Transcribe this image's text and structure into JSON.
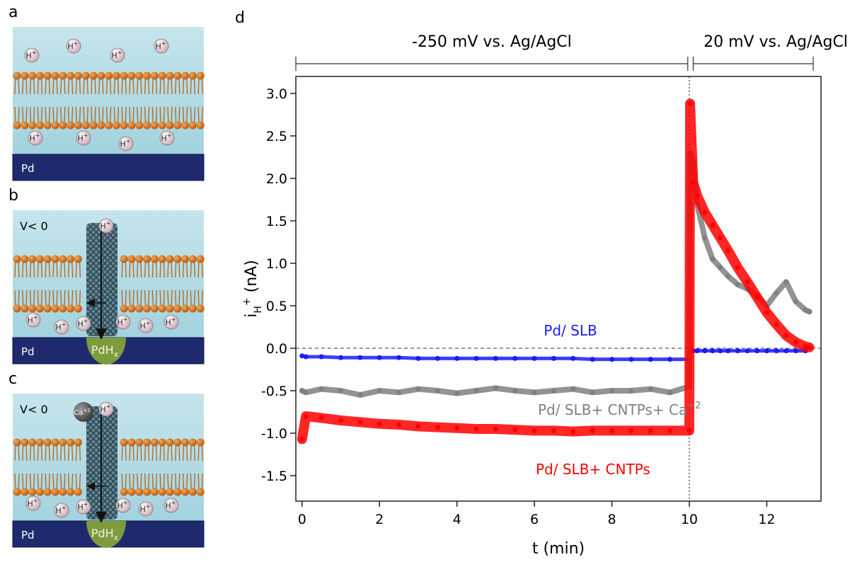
{
  "panels": [
    {
      "label": "a",
      "substrate": "Pd"
    },
    {
      "label": "b",
      "substrate": "Pd",
      "voltage": "V< 0",
      "product": "PdH",
      "product_sub": "x"
    },
    {
      "label": "c",
      "substrate": "Pd",
      "voltage": "V< 0",
      "product": "PdH",
      "product_sub": "x",
      "cation": "Ca",
      "cation_sup": "+2"
    }
  ],
  "ion": {
    "base": "H",
    "sup": "+"
  },
  "chart_data": {
    "type": "line",
    "panel_label": "d",
    "xlabel": "t (min)",
    "ylabel": {
      "main": "i",
      "sub": "H",
      "sup": "+",
      "unit": " (nA)"
    },
    "xlim": [
      -0.16,
      13.4
    ],
    "ylim": [
      -1.8,
      3.2
    ],
    "xticks": [
      0,
      2,
      4,
      6,
      8,
      10,
      12
    ],
    "yticks": [
      -1.5,
      {
        "value": -1.0,
        "label": "-1.0"
      },
      -0.5,
      {
        "value": 0,
        "label": "0.0"
      },
      0.5,
      {
        "value": 1.0,
        "label": "1.0"
      },
      1.5,
      {
        "value": 2.0,
        "label": "2.0"
      },
      2.5,
      {
        "value": 3.0,
        "label": "3.0"
      }
    ],
    "hlines": [
      0
    ],
    "vlines": [
      10
    ],
    "annotations": [
      {
        "text": "-250 mV vs. Ag/AgCl",
        "span": [
          -0.16,
          9.96
        ]
      },
      {
        "text": "20 mV vs. Ag/AgCl",
        "span": [
          10.1,
          13.2
        ]
      }
    ],
    "x": [
      0,
      0.1,
      0.5,
      1,
      1.5,
      2,
      2.5,
      3,
      3.5,
      4,
      4.5,
      5,
      5.5,
      6,
      6.5,
      7,
      7.5,
      8,
      8.5,
      9,
      9.5,
      10,
      10.02,
      10.1,
      10.2,
      10.4,
      10.6,
      10.8,
      11,
      11.25,
      11.5,
      11.75,
      12,
      12.25,
      12.5,
      12.75,
      13,
      13.1
    ],
    "series": [
      {
        "name": "Pd/ SLB",
        "color": "#1a1aff",
        "values": [
          -0.09,
          -0.1,
          -0.1,
          -0.11,
          -0.11,
          -0.11,
          -0.11,
          -0.12,
          -0.12,
          -0.12,
          -0.12,
          -0.12,
          -0.12,
          -0.12,
          -0.12,
          -0.12,
          -0.13,
          -0.13,
          -0.13,
          -0.13,
          -0.13,
          -0.13,
          null,
          -0.03,
          -0.03,
          -0.03,
          -0.03,
          -0.03,
          -0.03,
          -0.03,
          -0.03,
          -0.03,
          -0.03,
          -0.03,
          -0.03,
          -0.03,
          -0.03,
          null
        ]
      },
      {
        "name": "Pd/ SLB+ CNTPs+ Ca",
        "name_sup": "+2",
        "color": "#808080",
        "values": [
          -0.5,
          -0.52,
          -0.48,
          -0.5,
          -0.55,
          -0.5,
          -0.52,
          -0.48,
          -0.5,
          -0.53,
          -0.5,
          -0.47,
          -0.5,
          -0.52,
          -0.5,
          -0.48,
          -0.52,
          -0.5,
          -0.5,
          -0.48,
          -0.52,
          -0.45,
          2.3,
          2.2,
          1.7,
          1.3,
          1.05,
          0.95,
          0.85,
          0.75,
          0.7,
          0.62,
          0.5,
          0.65,
          0.78,
          0.55,
          0.45,
          0.43
        ]
      },
      {
        "name": "Pd/ SLB+ CNTPs",
        "color": "#ff0000",
        "values": [
          -1.07,
          -0.8,
          -0.82,
          -0.85,
          -0.87,
          -0.89,
          -0.9,
          -0.92,
          -0.93,
          -0.94,
          -0.95,
          -0.95,
          -0.96,
          -0.97,
          -0.97,
          -0.98,
          -0.97,
          -0.97,
          -0.97,
          -0.97,
          -0.97,
          -0.97,
          2.88,
          1.95,
          1.8,
          1.6,
          1.45,
          1.3,
          1.15,
          0.95,
          0.78,
          0.6,
          0.42,
          0.28,
          0.15,
          0.07,
          0.02,
          0.01
        ]
      }
    ]
  }
}
